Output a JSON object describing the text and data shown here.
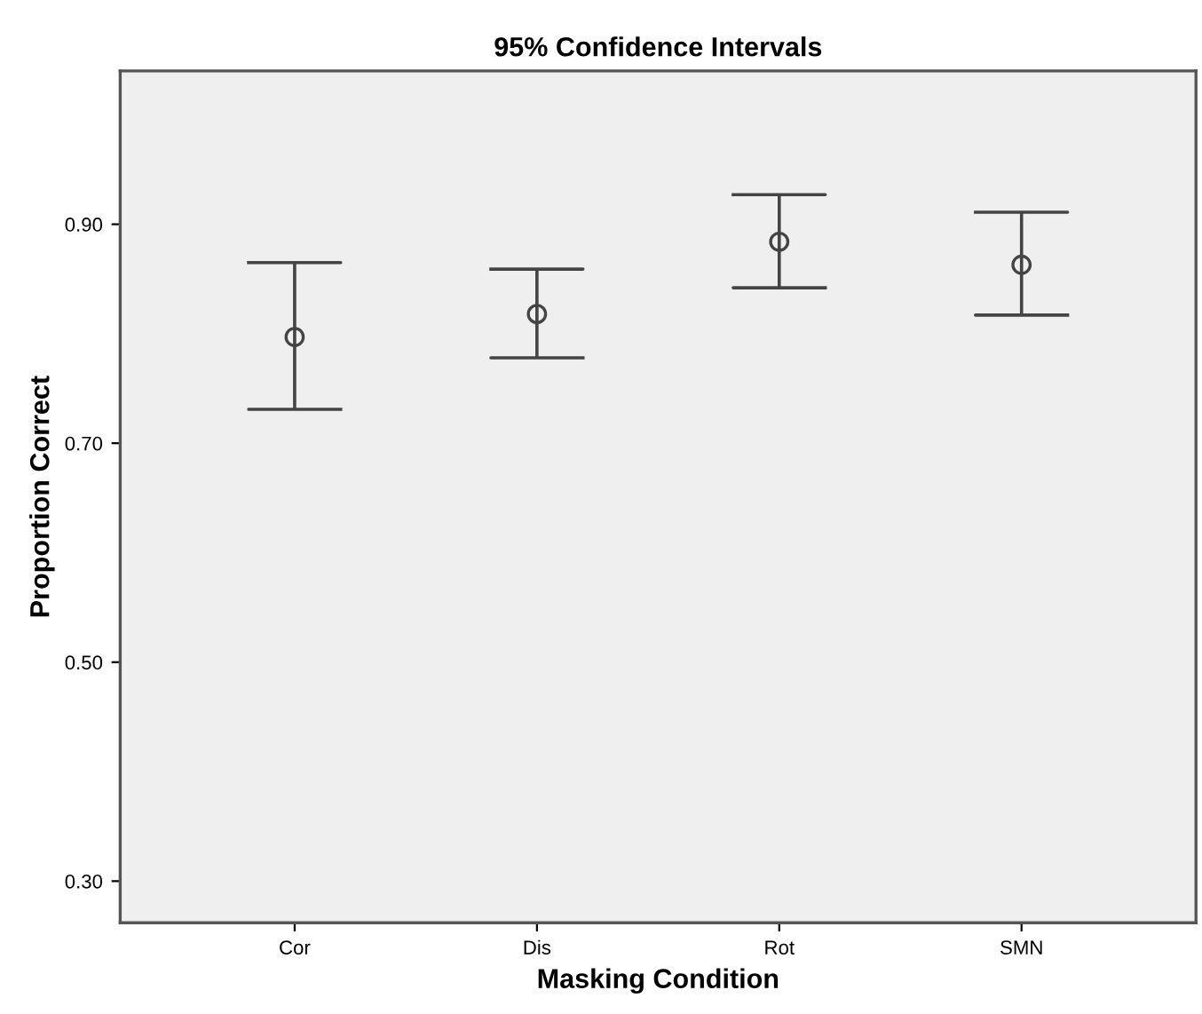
{
  "chart_data": {
    "type": "scatter",
    "title": "95% Confidence Intervals",
    "xlabel": "Masking Condition",
    "ylabel": "Proportion Correct",
    "categories": [
      "Cor",
      "Dis",
      "Rot",
      "SMN"
    ],
    "values": [
      0.797,
      0.818,
      0.884,
      0.863
    ],
    "errors": [
      [
        0.731,
        0.865
      ],
      [
        0.778,
        0.859
      ],
      [
        0.842,
        0.927
      ],
      [
        0.817,
        0.911
      ]
    ],
    "color": "#444444",
    "marker": "circle",
    "ylim": [
      0.262,
      1.04
    ],
    "yticks": [
      {
        "value": 0.3,
        "label": "0.30"
      },
      {
        "value": 0.5,
        "label": "0.50"
      },
      {
        "value": 0.7,
        "label": "0.70"
      },
      {
        "value": 0.9,
        "label": "0.90"
      }
    ],
    "grid": false
  }
}
